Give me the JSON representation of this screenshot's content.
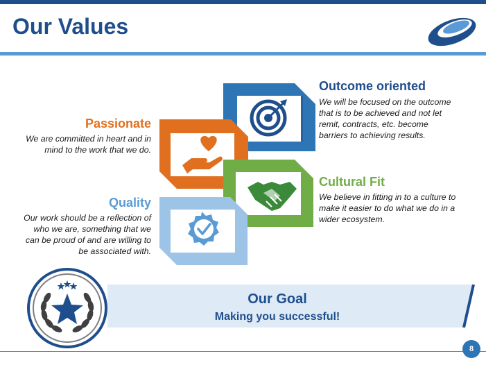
{
  "slide": {
    "title": "Our Values",
    "page_number": "8"
  },
  "values": {
    "outcome": {
      "heading": "Outcome oriented",
      "lines": [
        "We will be focused on the outcome",
        "that is to be achieved and not let",
        "remit, contracts, etc. become",
        "barriers to achieving results."
      ]
    },
    "passionate": {
      "heading": "Passionate",
      "lines": [
        "We are committed in heart and in",
        "mind to the work that we do."
      ]
    },
    "cultural": {
      "heading": "Cultural Fit",
      "lines": [
        "We believe in fitting in to a culture to",
        "make it easier to do what we do in a",
        "wider ecosystem."
      ]
    },
    "quality": {
      "heading": "Quality",
      "lines": [
        "Our work should be a reflection of",
        "who we are, something that we",
        "can be proud of and are willing to",
        "be associated with."
      ]
    }
  },
  "goal": {
    "title": "Our Goal",
    "subtitle": "Making you successful!"
  },
  "colors": {
    "navy": "#1f4e8c",
    "blue": "#2e75b6",
    "orange": "#e07020",
    "green": "#70ad47",
    "light_blue": "#5b9bd5",
    "pale_blue": "#deebf7"
  },
  "icons": {
    "outcome": "target-icon",
    "passionate": "heart-hand-icon",
    "cultural": "handshake-icon",
    "quality": "check-badge-icon",
    "goal": "star-laurel-medal-icon",
    "logo": "company-logo"
  }
}
